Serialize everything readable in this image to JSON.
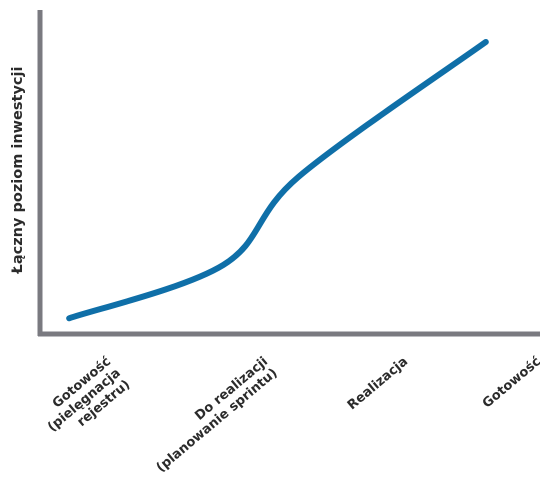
{
  "chart_data": {
    "type": "line",
    "title": "",
    "xlabel": "",
    "ylabel": "Łączny poziom inwestycji",
    "categories": [
      [
        "Gotowość",
        "(pielęgnacja",
        "rejestru)"
      ],
      [
        "Do realizacji",
        "(planowanie sprintu)"
      ],
      [
        "Realizacja"
      ],
      [
        "Gotowość"
      ]
    ],
    "x": [
      0.0,
      0.37,
      0.55,
      1.0
    ],
    "values": [
      0.05,
      0.22,
      0.5,
      0.93
    ],
    "ylim": [
      0,
      1
    ],
    "xlim": [
      -0.07,
      1.13
    ],
    "grid": false,
    "legend": "none"
  },
  "colors": {
    "line": "#0f6fa8",
    "axis": "#7a7a80",
    "text": "#2b2b2b",
    "background": "#ffffff"
  }
}
